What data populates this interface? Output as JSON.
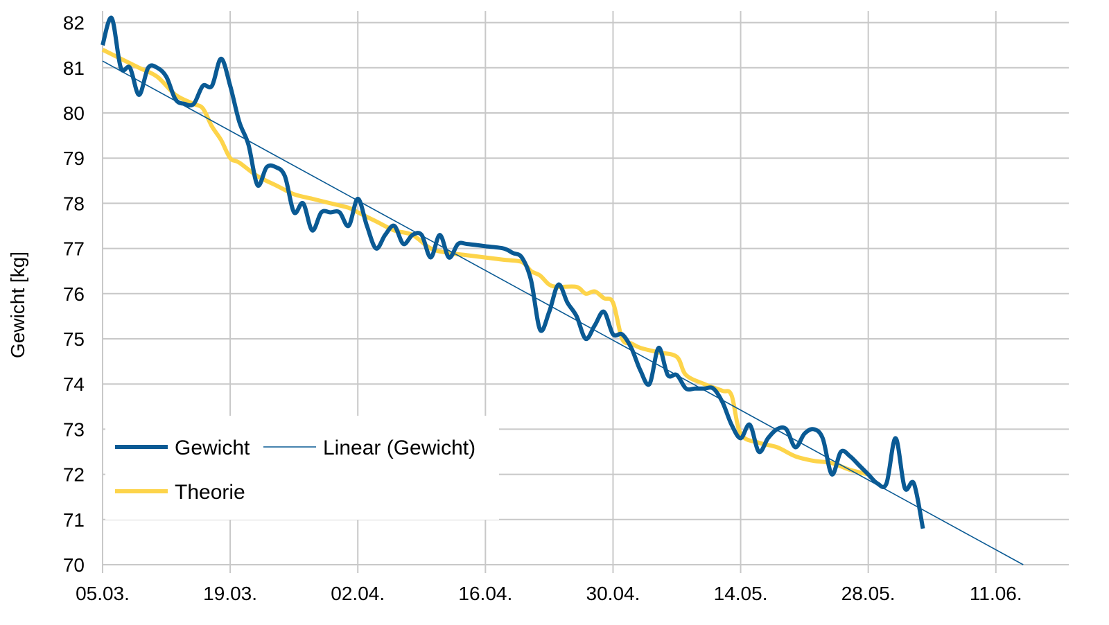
{
  "chart_data": {
    "type": "line",
    "title": "",
    "xlabel": "",
    "ylabel": "Gewicht  [kg]",
    "x_range": [
      "2015-03-05",
      "2015-06-19"
    ],
    "ylim": [
      70,
      82.5
    ],
    "y_ticks": [
      70,
      71,
      72,
      73,
      74,
      75,
      76,
      77,
      78,
      79,
      80,
      81,
      82
    ],
    "x_ticks": [
      {
        "date": "2015-03-05",
        "label": "05.03."
      },
      {
        "date": "2015-03-19",
        "label": "19.03."
      },
      {
        "date": "2015-04-02",
        "label": "02.04."
      },
      {
        "date": "2015-04-16",
        "label": "16.04."
      },
      {
        "date": "2015-04-30",
        "label": "30.04."
      },
      {
        "date": "2015-05-14",
        "label": "14.05."
      },
      {
        "date": "2015-05-28",
        "label": "28.05."
      },
      {
        "date": "2015-06-11",
        "label": "11.06."
      }
    ],
    "grid": true,
    "legend_position": "bottom-left",
    "series": [
      {
        "name": "Gewicht",
        "color": "#0a5a94",
        "style": "thick",
        "points": [
          [
            "2015-03-05",
            81.5
          ],
          [
            "2015-03-06",
            82.1
          ],
          [
            "2015-03-07",
            81.0
          ],
          [
            "2015-03-08",
            81.0
          ],
          [
            "2015-03-09",
            80.4
          ],
          [
            "2015-03-10",
            81.0
          ],
          [
            "2015-03-11",
            81.0
          ],
          [
            "2015-03-12",
            80.8
          ],
          [
            "2015-03-13",
            80.3
          ],
          [
            "2015-03-14",
            80.2
          ],
          [
            "2015-03-15",
            80.2
          ],
          [
            "2015-03-16",
            80.6
          ],
          [
            "2015-03-17",
            80.6
          ],
          [
            "2015-03-18",
            81.2
          ],
          [
            "2015-03-19",
            80.6
          ],
          [
            "2015-03-20",
            79.8
          ],
          [
            "2015-03-21",
            79.3
          ],
          [
            "2015-03-22",
            78.4
          ],
          [
            "2015-03-23",
            78.8
          ],
          [
            "2015-03-24",
            78.8
          ],
          [
            "2015-03-25",
            78.6
          ],
          [
            "2015-03-26",
            77.8
          ],
          [
            "2015-03-27",
            78.0
          ],
          [
            "2015-03-28",
            77.4
          ],
          [
            "2015-03-29",
            77.8
          ],
          [
            "2015-03-30",
            77.8
          ],
          [
            "2015-03-31",
            77.8
          ],
          [
            "2015-04-01",
            77.5
          ],
          [
            "2015-04-02",
            78.1
          ],
          [
            "2015-04-03",
            77.5
          ],
          [
            "2015-04-04",
            77.0
          ],
          [
            "2015-04-05",
            77.3
          ],
          [
            "2015-04-06",
            77.5
          ],
          [
            "2015-04-07",
            77.1
          ],
          [
            "2015-04-08",
            77.3
          ],
          [
            "2015-04-09",
            77.3
          ],
          [
            "2015-04-10",
            76.8
          ],
          [
            "2015-04-11",
            77.3
          ],
          [
            "2015-04-12",
            76.8
          ],
          [
            "2015-04-13",
            77.1
          ],
          [
            "2015-04-14",
            77.1
          ],
          [
            "2015-04-16",
            77.05
          ],
          [
            "2015-04-18",
            77.0
          ],
          [
            "2015-04-19",
            76.9
          ],
          [
            "2015-04-20",
            76.8
          ],
          [
            "2015-04-21",
            76.3
          ],
          [
            "2015-04-22",
            75.2
          ],
          [
            "2015-04-23",
            75.6
          ],
          [
            "2015-04-24",
            76.2
          ],
          [
            "2015-04-25",
            75.8
          ],
          [
            "2015-04-26",
            75.5
          ],
          [
            "2015-04-27",
            75.0
          ],
          [
            "2015-04-28",
            75.3
          ],
          [
            "2015-04-29",
            75.6
          ],
          [
            "2015-04-30",
            75.1
          ],
          [
            "2015-05-01",
            75.1
          ],
          [
            "2015-05-02",
            74.8
          ],
          [
            "2015-05-03",
            74.3
          ],
          [
            "2015-05-04",
            74.0
          ],
          [
            "2015-05-05",
            74.8
          ],
          [
            "2015-05-06",
            74.2
          ],
          [
            "2015-05-07",
            74.2
          ],
          [
            "2015-05-08",
            73.9
          ],
          [
            "2015-05-09",
            73.9
          ],
          [
            "2015-05-10",
            73.9
          ],
          [
            "2015-05-11",
            73.9
          ],
          [
            "2015-05-12",
            73.6
          ],
          [
            "2015-05-13",
            73.1
          ],
          [
            "2015-05-14",
            72.8
          ],
          [
            "2015-05-15",
            73.1
          ],
          [
            "2015-05-16",
            72.5
          ],
          [
            "2015-05-17",
            72.8
          ],
          [
            "2015-05-18",
            73.0
          ],
          [
            "2015-05-19",
            73.0
          ],
          [
            "2015-05-20",
            72.6
          ],
          [
            "2015-05-21",
            72.9
          ],
          [
            "2015-05-22",
            73.0
          ],
          [
            "2015-05-23",
            72.8
          ],
          [
            "2015-05-24",
            72.0
          ],
          [
            "2015-05-25",
            72.5
          ],
          [
            "2015-05-26",
            72.4
          ],
          [
            "2015-05-27",
            72.2
          ],
          [
            "2015-05-28",
            72.0
          ],
          [
            "2015-05-29",
            71.8
          ],
          [
            "2015-05-30",
            71.8
          ],
          [
            "2015-05-31",
            72.8
          ],
          [
            "2015-06-01",
            71.7
          ],
          [
            "2015-06-02",
            71.8
          ],
          [
            "2015-06-03",
            70.8
          ]
        ]
      },
      {
        "name": "Theorie",
        "color": "#fdd44a",
        "style": "thick",
        "points": [
          [
            "2015-03-05",
            81.4
          ],
          [
            "2015-03-07",
            81.2
          ],
          [
            "2015-03-09",
            81.0
          ],
          [
            "2015-03-11",
            80.8
          ],
          [
            "2015-03-13",
            80.4
          ],
          [
            "2015-03-15",
            80.2
          ],
          [
            "2015-03-16",
            80.1
          ],
          [
            "2015-03-17",
            79.7
          ],
          [
            "2015-03-18",
            79.4
          ],
          [
            "2015-03-19",
            79.0
          ],
          [
            "2015-03-20",
            78.9
          ],
          [
            "2015-03-22",
            78.6
          ],
          [
            "2015-03-24",
            78.4
          ],
          [
            "2015-03-26",
            78.2
          ],
          [
            "2015-03-28",
            78.1
          ],
          [
            "2015-03-30",
            78.0
          ],
          [
            "2015-04-01",
            77.9
          ],
          [
            "2015-04-02",
            77.8
          ],
          [
            "2015-04-04",
            77.6
          ],
          [
            "2015-04-06",
            77.4
          ],
          [
            "2015-04-08",
            77.3
          ],
          [
            "2015-04-10",
            77.0
          ],
          [
            "2015-04-12",
            76.9
          ],
          [
            "2015-04-14",
            76.85
          ],
          [
            "2015-04-16",
            76.8
          ],
          [
            "2015-04-18",
            76.75
          ],
          [
            "2015-04-20",
            76.7
          ],
          [
            "2015-04-21",
            76.5
          ],
          [
            "2015-04-22",
            76.4
          ],
          [
            "2015-04-23",
            76.2
          ],
          [
            "2015-04-24",
            76.15
          ],
          [
            "2015-04-26",
            76.15
          ],
          [
            "2015-04-27",
            76.0
          ],
          [
            "2015-04-28",
            76.05
          ],
          [
            "2015-04-29",
            75.9
          ],
          [
            "2015-04-30",
            75.8
          ],
          [
            "2015-05-01",
            75.0
          ],
          [
            "2015-05-02",
            74.9
          ],
          [
            "2015-05-03",
            74.8
          ],
          [
            "2015-05-05",
            74.7
          ],
          [
            "2015-05-07",
            74.6
          ],
          [
            "2015-05-08",
            74.2
          ],
          [
            "2015-05-10",
            74.0
          ],
          [
            "2015-05-12",
            73.85
          ],
          [
            "2015-05-13",
            73.75
          ],
          [
            "2015-05-14",
            72.9
          ],
          [
            "2015-05-16",
            72.7
          ],
          [
            "2015-05-18",
            72.6
          ],
          [
            "2015-05-20",
            72.4
          ],
          [
            "2015-05-22",
            72.3
          ],
          [
            "2015-05-24",
            72.25
          ],
          [
            "2015-05-26",
            72.1
          ],
          [
            "2015-05-28",
            72.0
          ]
        ]
      },
      {
        "name": "Linear  (Gewicht)",
        "color": "#0a5a94",
        "style": "thin",
        "points": [
          [
            "2015-03-05",
            81.15
          ],
          [
            "2015-06-14",
            70.0
          ]
        ]
      }
    ]
  }
}
